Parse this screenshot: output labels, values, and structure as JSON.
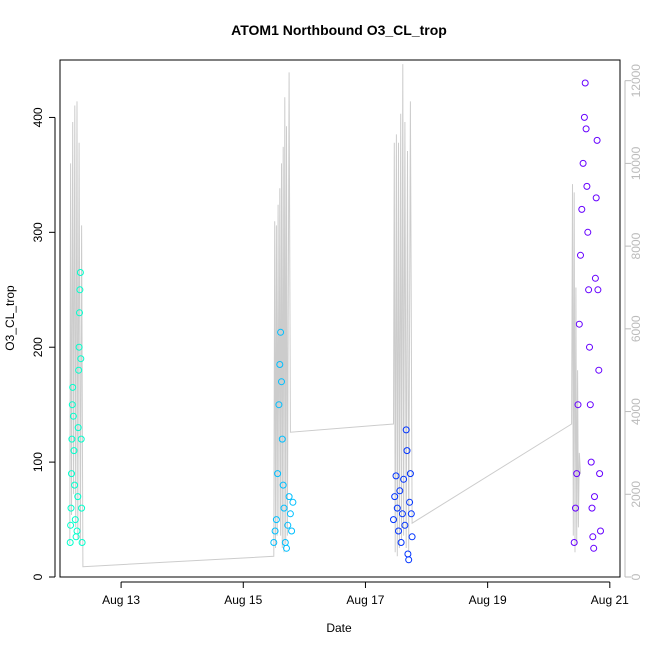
{
  "chart_data": {
    "type": "scatter",
    "title": "ATOM1 Northbound O3_CL_trop",
    "xlabel": "Date",
    "ylabel": "O3_CL_trop",
    "x_ticks": [
      {
        "value": "2016-08-13",
        "label": "Aug 13"
      },
      {
        "value": "2016-08-15",
        "label": "Aug 15"
      },
      {
        "value": "2016-08-17",
        "label": "Aug 17"
      },
      {
        "value": "2016-08-19",
        "label": "Aug 19"
      },
      {
        "value": "2016-08-21",
        "label": "Aug 21"
      }
    ],
    "xlim": [
      "2016-08-12T00:00",
      "2016-08-21T04:00"
    ],
    "ylim": [
      0,
      450
    ],
    "y_ticks": [
      0,
      100,
      200,
      300,
      400
    ],
    "y2_ticks": [
      0,
      2000,
      4000,
      6000,
      8000,
      10000,
      12000
    ],
    "y2lim": [
      0,
      12500
    ],
    "grid": false,
    "legend": "none",
    "series": [
      {
        "color": "#00FFCC",
        "points": [
          {
            "x": "2016-08-12T04:00",
            "y": 30
          },
          {
            "x": "2016-08-12T04:10",
            "y": 45
          },
          {
            "x": "2016-08-12T04:20",
            "y": 60
          },
          {
            "x": "2016-08-12T04:30",
            "y": 90
          },
          {
            "x": "2016-08-12T04:40",
            "y": 120
          },
          {
            "x": "2016-08-12T04:50",
            "y": 150
          },
          {
            "x": "2016-08-12T05:00",
            "y": 165
          },
          {
            "x": "2016-08-12T05:15",
            "y": 140
          },
          {
            "x": "2016-08-12T05:30",
            "y": 110
          },
          {
            "x": "2016-08-12T05:45",
            "y": 80
          },
          {
            "x": "2016-08-12T06:00",
            "y": 50
          },
          {
            "x": "2016-08-12T06:20",
            "y": 35
          },
          {
            "x": "2016-08-12T06:40",
            "y": 40
          },
          {
            "x": "2016-08-12T07:00",
            "y": 70
          },
          {
            "x": "2016-08-12T07:10",
            "y": 130
          },
          {
            "x": "2016-08-12T07:20",
            "y": 180
          },
          {
            "x": "2016-08-12T07:30",
            "y": 200
          },
          {
            "x": "2016-08-12T07:40",
            "y": 230
          },
          {
            "x": "2016-08-12T07:50",
            "y": 250
          },
          {
            "x": "2016-08-12T08:00",
            "y": 265
          },
          {
            "x": "2016-08-12T08:10",
            "y": 190
          },
          {
            "x": "2016-08-12T08:20",
            "y": 120
          },
          {
            "x": "2016-08-12T08:30",
            "y": 60
          },
          {
            "x": "2016-08-12T08:40",
            "y": 30
          }
        ]
      },
      {
        "color": "#00BFFF",
        "points": [
          {
            "x": "2016-08-15T12:00",
            "y": 30
          },
          {
            "x": "2016-08-15T12:30",
            "y": 40
          },
          {
            "x": "2016-08-15T13:00",
            "y": 50
          },
          {
            "x": "2016-08-15T13:30",
            "y": 90
          },
          {
            "x": "2016-08-15T14:00",
            "y": 150
          },
          {
            "x": "2016-08-15T14:20",
            "y": 185
          },
          {
            "x": "2016-08-15T14:40",
            "y": 213
          },
          {
            "x": "2016-08-15T15:00",
            "y": 170
          },
          {
            "x": "2016-08-15T15:20",
            "y": 120
          },
          {
            "x": "2016-08-15T15:40",
            "y": 80
          },
          {
            "x": "2016-08-15T16:00",
            "y": 60
          },
          {
            "x": "2016-08-15T16:30",
            "y": 30
          },
          {
            "x": "2016-08-15T17:00",
            "y": 25
          },
          {
            "x": "2016-08-15T17:30",
            "y": 45
          },
          {
            "x": "2016-08-15T18:00",
            "y": 70
          },
          {
            "x": "2016-08-15T18:30",
            "y": 55
          },
          {
            "x": "2016-08-15T19:00",
            "y": 40
          },
          {
            "x": "2016-08-15T19:30",
            "y": 65
          }
        ]
      },
      {
        "color": "#0033FF",
        "points": [
          {
            "x": "2016-08-17T11:00",
            "y": 50
          },
          {
            "x": "2016-08-17T11:30",
            "y": 70
          },
          {
            "x": "2016-08-17T12:00",
            "y": 88
          },
          {
            "x": "2016-08-17T12:30",
            "y": 60
          },
          {
            "x": "2016-08-17T13:00",
            "y": 40
          },
          {
            "x": "2016-08-17T13:30",
            "y": 75
          },
          {
            "x": "2016-08-17T14:00",
            "y": 30
          },
          {
            "x": "2016-08-17T14:30",
            "y": 55
          },
          {
            "x": "2016-08-17T15:00",
            "y": 85
          },
          {
            "x": "2016-08-17T15:30",
            "y": 45
          },
          {
            "x": "2016-08-17T16:00",
            "y": 128
          },
          {
            "x": "2016-08-17T16:20",
            "y": 110
          },
          {
            "x": "2016-08-17T16:40",
            "y": 20
          },
          {
            "x": "2016-08-17T17:00",
            "y": 15
          },
          {
            "x": "2016-08-17T17:20",
            "y": 65
          },
          {
            "x": "2016-08-17T17:40",
            "y": 90
          },
          {
            "x": "2016-08-17T18:00",
            "y": 55
          },
          {
            "x": "2016-08-17T18:20",
            "y": 35
          }
        ]
      },
      {
        "color": "#6600FF",
        "points": [
          {
            "x": "2016-08-20T10:00",
            "y": 30
          },
          {
            "x": "2016-08-20T10:30",
            "y": 60
          },
          {
            "x": "2016-08-20T11:00",
            "y": 90
          },
          {
            "x": "2016-08-20T11:30",
            "y": 150
          },
          {
            "x": "2016-08-20T12:00",
            "y": 220
          },
          {
            "x": "2016-08-20T12:30",
            "y": 280
          },
          {
            "x": "2016-08-20T13:00",
            "y": 320
          },
          {
            "x": "2016-08-20T13:30",
            "y": 360
          },
          {
            "x": "2016-08-20T14:00",
            "y": 400
          },
          {
            "x": "2016-08-20T14:20",
            "y": 430
          },
          {
            "x": "2016-08-20T14:40",
            "y": 390
          },
          {
            "x": "2016-08-20T15:00",
            "y": 340
          },
          {
            "x": "2016-08-20T15:20",
            "y": 300
          },
          {
            "x": "2016-08-20T15:40",
            "y": 250
          },
          {
            "x": "2016-08-20T16:00",
            "y": 200
          },
          {
            "x": "2016-08-20T16:20",
            "y": 150
          },
          {
            "x": "2016-08-20T16:40",
            "y": 100
          },
          {
            "x": "2016-08-20T17:00",
            "y": 60
          },
          {
            "x": "2016-08-20T17:20",
            "y": 35
          },
          {
            "x": "2016-08-20T17:40",
            "y": 25
          },
          {
            "x": "2016-08-20T18:00",
            "y": 70
          },
          {
            "x": "2016-08-20T18:20",
            "y": 260
          },
          {
            "x": "2016-08-20T18:40",
            "y": 330
          },
          {
            "x": "2016-08-20T19:00",
            "y": 380
          },
          {
            "x": "2016-08-20T19:20",
            "y": 250
          },
          {
            "x": "2016-08-20T19:40",
            "y": 180
          },
          {
            "x": "2016-08-20T20:00",
            "y": 90
          },
          {
            "x": "2016-08-20T20:20",
            "y": 40
          }
        ]
      }
    ],
    "secondary_trace": {
      "color": "#CCCCCC",
      "points": [
        {
          "x": "2016-08-12T03:50",
          "y2": 800
        },
        {
          "x": "2016-08-12T04:10",
          "y2": 10000
        },
        {
          "x": "2016-08-12T04:30",
          "y2": 1500
        },
        {
          "x": "2016-08-12T05:00",
          "y2": 11000
        },
        {
          "x": "2016-08-12T05:20",
          "y2": 2000
        },
        {
          "x": "2016-08-12T05:50",
          "y2": 11400
        },
        {
          "x": "2016-08-12T06:10",
          "y2": 1200
        },
        {
          "x": "2016-08-12T06:40",
          "y2": 11500
        },
        {
          "x": "2016-08-12T07:00",
          "y2": 900
        },
        {
          "x": "2016-08-12T07:30",
          "y2": 10500
        },
        {
          "x": "2016-08-12T08:00",
          "y2": 800
        },
        {
          "x": "2016-08-12T08:30",
          "y2": 8500
        },
        {
          "x": "2016-08-12T09:00",
          "y2": 250
        },
        {
          "x": "2016-08-15T12:00",
          "y2": 500
        },
        {
          "x": "2016-08-15T12:20",
          "y2": 8600
        },
        {
          "x": "2016-08-15T12:40",
          "y2": 700
        },
        {
          "x": "2016-08-15T13:00",
          "y2": 8500
        },
        {
          "x": "2016-08-15T13:20",
          "y2": 1000
        },
        {
          "x": "2016-08-15T13:40",
          "y2": 9000
        },
        {
          "x": "2016-08-15T14:00",
          "y2": 1400
        },
        {
          "x": "2016-08-15T14:20",
          "y2": 9400
        },
        {
          "x": "2016-08-15T14:40",
          "y2": 1000
        },
        {
          "x": "2016-08-15T15:00",
          "y2": 10000
        },
        {
          "x": "2016-08-15T15:20",
          "y2": 700
        },
        {
          "x": "2016-08-15T15:40",
          "y2": 10400
        },
        {
          "x": "2016-08-15T16:00",
          "y2": 600
        },
        {
          "x": "2016-08-15T16:20",
          "y2": 11600
        },
        {
          "x": "2016-08-15T16:40",
          "y2": 800
        },
        {
          "x": "2016-08-15T17:00",
          "y2": 10900
        },
        {
          "x": "2016-08-15T17:20",
          "y2": 1000
        },
        {
          "x": "2016-08-15T18:00",
          "y2": 12200
        },
        {
          "x": "2016-08-15T18:30",
          "y2": 3500
        },
        {
          "x": "2016-08-17T11:00",
          "y2": 3700
        },
        {
          "x": "2016-08-17T11:20",
          "y2": 10500
        },
        {
          "x": "2016-08-17T11:40",
          "y2": 600
        },
        {
          "x": "2016-08-17T12:10",
          "y2": 10700
        },
        {
          "x": "2016-08-17T12:30",
          "y2": 500
        },
        {
          "x": "2016-08-17T13:00",
          "y2": 10500
        },
        {
          "x": "2016-08-17T13:20",
          "y2": 700
        },
        {
          "x": "2016-08-17T13:50",
          "y2": 11200
        },
        {
          "x": "2016-08-17T14:10",
          "y2": 900
        },
        {
          "x": "2016-08-17T14:40",
          "y2": 12400
        },
        {
          "x": "2016-08-17T15:00",
          "y2": 1000
        },
        {
          "x": "2016-08-17T15:30",
          "y2": 11000
        },
        {
          "x": "2016-08-17T16:00",
          "y2": 700
        },
        {
          "x": "2016-08-17T16:30",
          "y2": 10300
        },
        {
          "x": "2016-08-17T17:00",
          "y2": 600
        },
        {
          "x": "2016-08-17T17:40",
          "y2": 11500
        },
        {
          "x": "2016-08-17T18:20",
          "y2": 1300
        },
        {
          "x": "2016-08-20T09:00",
          "y2": 3700
        },
        {
          "x": "2016-08-20T09:20",
          "y2": 9500
        },
        {
          "x": "2016-08-20T09:40",
          "y2": 1000
        },
        {
          "x": "2016-08-20T10:00",
          "y2": 9300
        },
        {
          "x": "2016-08-20T10:20",
          "y2": 600
        },
        {
          "x": "2016-08-20T10:40",
          "y2": 7000
        },
        {
          "x": "2016-08-20T11:00",
          "y2": 800
        },
        {
          "x": "2016-08-20T11:20",
          "y2": 5000
        },
        {
          "x": "2016-08-20T11:40",
          "y2": 1200
        },
        {
          "x": "2016-08-20T12:00",
          "y2": 3000
        },
        {
          "x": "2016-08-20T12:30",
          "y2": 2500
        }
      ]
    }
  }
}
